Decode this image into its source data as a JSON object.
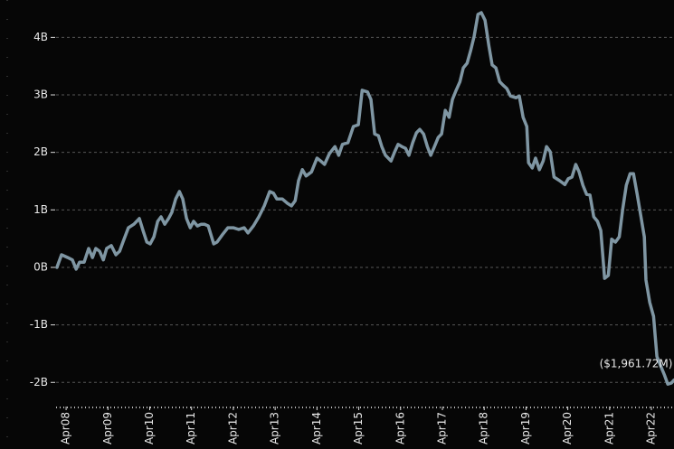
{
  "chart_data": {
    "type": "line",
    "annotation": "($1,961.72M)",
    "series": [
      {
        "color": "#7f96a3",
        "x": [
          2008.03,
          2008.14,
          2008.29,
          2008.4,
          2008.49,
          2008.57,
          2008.68,
          2008.79,
          2008.88,
          2008.96,
          2009.05,
          2009.14,
          2009.22,
          2009.33,
          2009.44,
          2009.53,
          2009.61,
          2009.74,
          2009.87,
          2010.0,
          2010.09,
          2010.18,
          2010.26,
          2010.35,
          2010.44,
          2010.52,
          2010.61,
          2010.7,
          2010.78,
          2010.87,
          2010.96,
          2011.04,
          2011.13,
          2011.22,
          2011.3,
          2011.39,
          2011.48,
          2011.56,
          2011.65,
          2011.78,
          2011.86,
          2011.99,
          2012.12,
          2012.25,
          2012.38,
          2012.51,
          2012.6,
          2012.73,
          2012.86,
          2012.99,
          2013.12,
          2013.21,
          2013.29,
          2013.42,
          2013.55,
          2013.64,
          2013.73,
          2013.81,
          2013.9,
          2013.99,
          2014.12,
          2014.25,
          2014.34,
          2014.43,
          2014.55,
          2014.68,
          2014.77,
          2014.86,
          2014.99,
          2015.12,
          2015.24,
          2015.33,
          2015.46,
          2015.54,
          2015.63,
          2015.72,
          2015.8,
          2015.89,
          2016.02,
          2016.11,
          2016.19,
          2016.28,
          2016.37,
          2016.45,
          2016.54,
          2016.63,
          2016.71,
          2016.8,
          2016.89,
          2016.97,
          2017.06,
          2017.15,
          2017.23,
          2017.32,
          2017.41,
          2017.49,
          2017.58,
          2017.67,
          2017.75,
          2017.84,
          2017.93,
          2018.01,
          2018.1,
          2018.18,
          2018.27,
          2018.36,
          2018.44,
          2018.53,
          2018.62,
          2018.7,
          2018.79,
          2018.88,
          2019.01,
          2019.09,
          2019.18,
          2019.27,
          2019.31,
          2019.4,
          2019.48,
          2019.57,
          2019.66,
          2019.74,
          2019.83,
          2019.92,
          2020.05,
          2020.18,
          2020.26,
          2020.35,
          2020.44,
          2020.52,
          2020.61,
          2020.7,
          2020.78,
          2020.87,
          2020.96,
          2021.04,
          2021.13,
          2021.22,
          2021.3,
          2021.39,
          2021.48,
          2021.56,
          2021.65,
          2021.74,
          2021.82,
          2021.91,
          2022.0,
          2022.08,
          2022.12,
          2022.21,
          2022.3,
          2022.38,
          2022.47,
          2022.56,
          2022.64,
          2022.73,
          2022.79
        ],
        "values": [
          0,
          0.22,
          0.17,
          0.13,
          -0.03,
          0.09,
          0.09,
          0.33,
          0.17,
          0.33,
          0.28,
          0.13,
          0.33,
          0.38,
          0.22,
          0.28,
          0.44,
          0.69,
          0.75,
          0.85,
          0.64,
          0.44,
          0.41,
          0.53,
          0.8,
          0.88,
          0.75,
          0.85,
          0.96,
          1.19,
          1.32,
          1.19,
          0.85,
          0.69,
          0.8,
          0.72,
          0.75,
          0.75,
          0.72,
          0.41,
          0.44,
          0.57,
          0.69,
          0.69,
          0.66,
          0.69,
          0.6,
          0.72,
          0.88,
          1.07,
          1.32,
          1.29,
          1.19,
          1.19,
          1.11,
          1.07,
          1.16,
          1.51,
          1.7,
          1.59,
          1.66,
          1.9,
          1.85,
          1.79,
          1.98,
          2.1,
          1.95,
          2.14,
          2.17,
          2.45,
          2.48,
          3.08,
          3.05,
          2.92,
          2.32,
          2.29,
          2.1,
          1.95,
          1.85,
          2.01,
          2.14,
          2.1,
          2.07,
          1.95,
          2.17,
          2.34,
          2.4,
          2.32,
          2.1,
          1.95,
          2.1,
          2.26,
          2.32,
          2.73,
          2.61,
          2.92,
          3.08,
          3.23,
          3.47,
          3.55,
          3.78,
          4.02,
          4.4,
          4.43,
          4.3,
          3.86,
          3.52,
          3.47,
          3.23,
          3.17,
          3.11,
          2.98,
          2.95,
          2.98,
          2.61,
          2.45,
          1.82,
          1.73,
          1.9,
          1.7,
          1.85,
          2.1,
          2.01,
          1.57,
          1.51,
          1.44,
          1.54,
          1.57,
          1.79,
          1.66,
          1.43,
          1.27,
          1.26,
          0.88,
          0.8,
          0.64,
          -0.19,
          -0.14,
          0.49,
          0.44,
          0.53,
          1.0,
          1.43,
          1.63,
          1.63,
          1.27,
          0.88,
          0.53,
          -0.22,
          -0.61,
          -0.85,
          -1.55,
          -1.71,
          -1.87,
          -2.03,
          -2.01,
          -1.96
        ]
      }
    ],
    "xlim": [
      2008.01,
      2022.79
    ],
    "xticks": [
      {
        "value": 2008.25,
        "label": "Apr08"
      },
      {
        "value": 2009.25,
        "label": "Apr09"
      },
      {
        "value": 2010.25,
        "label": "Apr10"
      },
      {
        "value": 2011.25,
        "label": "Apr11"
      },
      {
        "value": 2012.25,
        "label": "Apr12"
      },
      {
        "value": 2013.25,
        "label": "Apr13"
      },
      {
        "value": 2014.25,
        "label": "Apr14"
      },
      {
        "value": 2015.25,
        "label": "Apr15"
      },
      {
        "value": 2016.25,
        "label": "Apr16"
      },
      {
        "value": 2017.25,
        "label": "Apr17"
      },
      {
        "value": 2018.25,
        "label": "Apr18"
      },
      {
        "value": 2019.25,
        "label": "Apr19"
      },
      {
        "value": 2020.25,
        "label": "Apr20"
      },
      {
        "value": 2021.25,
        "label": "Apr21"
      },
      {
        "value": 2022.25,
        "label": "Apr22"
      }
    ],
    "ylim": [
      -2.42,
      4.65
    ],
    "yticks": [
      {
        "value": 4,
        "label": "4B"
      },
      {
        "value": 3,
        "label": "3B"
      },
      {
        "value": 2,
        "label": "2B"
      },
      {
        "value": 1,
        "label": "1B"
      },
      {
        "value": 0,
        "label": "0B"
      },
      {
        "value": -1,
        "label": "-1B"
      },
      {
        "value": -2,
        "label": "-2B"
      }
    ],
    "grid": true
  }
}
